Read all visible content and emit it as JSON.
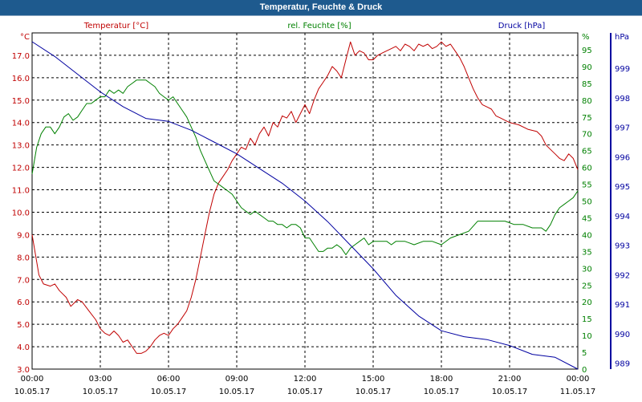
{
  "window": {
    "title": "Temperatur, Feuchte & Druck"
  },
  "chart_data": {
    "type": "line",
    "title": "Temperatur, Feuchte & Druck",
    "grid": true,
    "x_ticks": [
      {
        "time": "00:00",
        "date": "10.05.17"
      },
      {
        "time": "03:00",
        "date": "10.05.17"
      },
      {
        "time": "06:00",
        "date": "10.05.17"
      },
      {
        "time": "09:00",
        "date": "10.05.17"
      },
      {
        "time": "12:00",
        "date": "10.05.17"
      },
      {
        "time": "15:00",
        "date": "10.05.17"
      },
      {
        "time": "18:00",
        "date": "10.05.17"
      },
      {
        "time": "21:00",
        "date": "10.05.17"
      },
      {
        "time": "00:00",
        "date": "11.05.17"
      }
    ],
    "x_range_hours": [
      0,
      24
    ],
    "axes": {
      "temperature": {
        "label": "Temperatur [°C]",
        "unit": "°C",
        "color": "#c00000",
        "side": "left",
        "range": [
          3.0,
          18.0
        ],
        "ticks": [
          "3.0",
          "4.0",
          "5.0",
          "6.0",
          "7.0",
          "8.0",
          "9.0",
          "10.0",
          "11.0",
          "12.0",
          "13.0",
          "14.0",
          "15.0",
          "16.0",
          "17.0"
        ]
      },
      "humidity": {
        "label": "rel. Feuchte [%]",
        "unit": "%",
        "color": "#008000",
        "side": "right-inner",
        "range": [
          0,
          100
        ],
        "ticks": [
          "0",
          "5",
          "10",
          "15",
          "20",
          "25",
          "30",
          "35",
          "40",
          "45",
          "50",
          "55",
          "60",
          "65",
          "70",
          "75",
          "80",
          "85",
          "90",
          "95"
        ]
      },
      "pressure": {
        "label": "Druck [hPa]",
        "unit": "hPa",
        "color": "#0000a0",
        "side": "right-outer",
        "range": [
          988.8,
          1000.2
        ],
        "ticks": [
          "989",
          "990",
          "991",
          "992",
          "993",
          "994",
          "995",
          "996",
          "997",
          "998",
          "999"
        ]
      }
    },
    "series": [
      {
        "name": "Temperatur [°C]",
        "axis": "temperature",
        "color": "#c00000",
        "points": [
          [
            0,
            9.0
          ],
          [
            0.3,
            7.2
          ],
          [
            0.5,
            6.8
          ],
          [
            0.8,
            6.7
          ],
          [
            1.0,
            6.8
          ],
          [
            1.2,
            6.5
          ],
          [
            1.5,
            6.2
          ],
          [
            1.7,
            5.8
          ],
          [
            2.0,
            6.1
          ],
          [
            2.2,
            6.0
          ],
          [
            2.5,
            5.6
          ],
          [
            2.8,
            5.2
          ],
          [
            3.0,
            4.8
          ],
          [
            3.2,
            4.6
          ],
          [
            3.4,
            4.5
          ],
          [
            3.6,
            4.7
          ],
          [
            3.8,
            4.5
          ],
          [
            4.0,
            4.2
          ],
          [
            4.2,
            4.3
          ],
          [
            4.4,
            4.0
          ],
          [
            4.6,
            3.7
          ],
          [
            4.8,
            3.7
          ],
          [
            5.0,
            3.8
          ],
          [
            5.2,
            4.0
          ],
          [
            5.4,
            4.3
          ],
          [
            5.6,
            4.5
          ],
          [
            5.8,
            4.6
          ],
          [
            6.0,
            4.5
          ],
          [
            6.2,
            4.8
          ],
          [
            6.4,
            5.0
          ],
          [
            6.6,
            5.3
          ],
          [
            6.8,
            5.6
          ],
          [
            7.0,
            6.2
          ],
          [
            7.2,
            7.0
          ],
          [
            7.4,
            8.0
          ],
          [
            7.6,
            9.0
          ],
          [
            7.8,
            10.0
          ],
          [
            8.0,
            10.8
          ],
          [
            8.2,
            11.3
          ],
          [
            8.4,
            11.6
          ],
          [
            8.6,
            11.9
          ],
          [
            8.8,
            12.3
          ],
          [
            9.0,
            12.6
          ],
          [
            9.2,
            12.9
          ],
          [
            9.4,
            12.8
          ],
          [
            9.6,
            13.3
          ],
          [
            9.8,
            13.0
          ],
          [
            10.0,
            13.5
          ],
          [
            10.2,
            13.8
          ],
          [
            10.4,
            13.4
          ],
          [
            10.6,
            14.0
          ],
          [
            10.8,
            13.8
          ],
          [
            11.0,
            14.3
          ],
          [
            11.2,
            14.2
          ],
          [
            11.4,
            14.5
          ],
          [
            11.6,
            14.0
          ],
          [
            11.8,
            14.4
          ],
          [
            12.0,
            14.8
          ],
          [
            12.2,
            14.4
          ],
          [
            12.4,
            15.0
          ],
          [
            12.6,
            15.5
          ],
          [
            12.8,
            15.8
          ],
          [
            13.0,
            16.1
          ],
          [
            13.2,
            16.5
          ],
          [
            13.4,
            16.3
          ],
          [
            13.6,
            16.0
          ],
          [
            13.8,
            16.8
          ],
          [
            14.0,
            17.6
          ],
          [
            14.2,
            17.0
          ],
          [
            14.4,
            17.2
          ],
          [
            14.6,
            17.1
          ],
          [
            14.8,
            16.8
          ],
          [
            15.0,
            16.8
          ],
          [
            15.2,
            17.0
          ],
          [
            15.4,
            17.1
          ],
          [
            15.6,
            17.2
          ],
          [
            15.8,
            17.3
          ],
          [
            16.0,
            17.4
          ],
          [
            16.2,
            17.2
          ],
          [
            16.4,
            17.5
          ],
          [
            16.6,
            17.4
          ],
          [
            16.8,
            17.2
          ],
          [
            17.0,
            17.5
          ],
          [
            17.2,
            17.4
          ],
          [
            17.4,
            17.5
          ],
          [
            17.6,
            17.3
          ],
          [
            17.8,
            17.4
          ],
          [
            18.0,
            17.6
          ],
          [
            18.2,
            17.4
          ],
          [
            18.4,
            17.5
          ],
          [
            18.6,
            17.2
          ],
          [
            18.8,
            16.9
          ],
          [
            19.0,
            16.5
          ],
          [
            19.2,
            16.0
          ],
          [
            19.4,
            15.5
          ],
          [
            19.6,
            15.1
          ],
          [
            19.8,
            14.8
          ],
          [
            20.0,
            14.7
          ],
          [
            20.2,
            14.6
          ],
          [
            20.4,
            14.3
          ],
          [
            20.6,
            14.2
          ],
          [
            20.8,
            14.1
          ],
          [
            21.0,
            14.0
          ],
          [
            21.4,
            13.9
          ],
          [
            21.8,
            13.7
          ],
          [
            22.2,
            13.6
          ],
          [
            22.4,
            13.4
          ],
          [
            22.6,
            13.0
          ],
          [
            22.8,
            12.8
          ],
          [
            23.0,
            12.6
          ],
          [
            23.2,
            12.4
          ],
          [
            23.4,
            12.3
          ],
          [
            23.6,
            12.6
          ],
          [
            23.8,
            12.4
          ],
          [
            24.0,
            11.9
          ]
        ]
      },
      {
        "name": "rel. Feuchte [%]",
        "axis": "humidity",
        "color": "#008000",
        "points": [
          [
            0,
            58
          ],
          [
            0.2,
            66
          ],
          [
            0.4,
            70
          ],
          [
            0.6,
            72
          ],
          [
            0.8,
            72
          ],
          [
            1.0,
            70
          ],
          [
            1.2,
            72
          ],
          [
            1.4,
            75
          ],
          [
            1.6,
            76
          ],
          [
            1.8,
            74
          ],
          [
            2.0,
            75
          ],
          [
            2.2,
            77
          ],
          [
            2.4,
            79
          ],
          [
            2.6,
            79
          ],
          [
            2.8,
            80
          ],
          [
            3.0,
            81
          ],
          [
            3.2,
            81
          ],
          [
            3.4,
            83
          ],
          [
            3.6,
            82
          ],
          [
            3.8,
            83
          ],
          [
            4.0,
            82
          ],
          [
            4.2,
            84
          ],
          [
            4.4,
            85
          ],
          [
            4.6,
            86
          ],
          [
            4.8,
            86
          ],
          [
            5.0,
            86
          ],
          [
            5.2,
            85
          ],
          [
            5.4,
            84
          ],
          [
            5.6,
            82
          ],
          [
            5.8,
            81
          ],
          [
            6.0,
            80
          ],
          [
            6.2,
            81
          ],
          [
            6.4,
            79
          ],
          [
            6.6,
            77
          ],
          [
            6.8,
            75
          ],
          [
            7.0,
            72
          ],
          [
            7.2,
            69
          ],
          [
            7.4,
            65
          ],
          [
            7.6,
            62
          ],
          [
            7.8,
            59
          ],
          [
            8.0,
            56
          ],
          [
            8.2,
            55
          ],
          [
            8.4,
            54
          ],
          [
            8.6,
            53
          ],
          [
            8.8,
            52
          ],
          [
            9.0,
            50
          ],
          [
            9.2,
            48
          ],
          [
            9.4,
            47
          ],
          [
            9.6,
            46
          ],
          [
            9.8,
            47
          ],
          [
            10.0,
            46
          ],
          [
            10.2,
            45
          ],
          [
            10.4,
            44
          ],
          [
            10.6,
            44
          ],
          [
            10.8,
            43
          ],
          [
            11.0,
            43
          ],
          [
            11.2,
            42
          ],
          [
            11.4,
            43
          ],
          [
            11.6,
            43
          ],
          [
            11.8,
            42
          ],
          [
            12.0,
            39
          ],
          [
            12.2,
            39
          ],
          [
            12.4,
            37
          ],
          [
            12.6,
            35
          ],
          [
            12.8,
            35
          ],
          [
            13.0,
            36
          ],
          [
            13.2,
            36
          ],
          [
            13.4,
            37
          ],
          [
            13.6,
            36
          ],
          [
            13.8,
            34
          ],
          [
            14.0,
            36
          ],
          [
            14.2,
            37
          ],
          [
            14.4,
            38
          ],
          [
            14.6,
            39
          ],
          [
            14.8,
            37
          ],
          [
            15.0,
            38
          ],
          [
            15.2,
            38
          ],
          [
            15.4,
            38
          ],
          [
            15.6,
            38
          ],
          [
            15.8,
            37
          ],
          [
            16.0,
            38
          ],
          [
            16.4,
            38
          ],
          [
            16.8,
            37
          ],
          [
            17.2,
            38
          ],
          [
            17.6,
            38
          ],
          [
            18.0,
            37
          ],
          [
            18.4,
            39
          ],
          [
            18.8,
            40
          ],
          [
            19.2,
            41
          ],
          [
            19.6,
            44
          ],
          [
            20.0,
            44
          ],
          [
            20.4,
            44
          ],
          [
            20.8,
            44
          ],
          [
            21.2,
            43
          ],
          [
            21.6,
            43
          ],
          [
            22.0,
            42
          ],
          [
            22.4,
            42
          ],
          [
            22.6,
            41
          ],
          [
            22.8,
            43
          ],
          [
            23.0,
            46
          ],
          [
            23.2,
            48
          ],
          [
            23.4,
            49
          ],
          [
            23.6,
            50
          ],
          [
            23.8,
            51
          ],
          [
            24.0,
            53
          ]
        ]
      },
      {
        "name": "Druck [hPa]",
        "axis": "pressure",
        "color": "#0000a0",
        "points": [
          [
            0,
            999.9
          ],
          [
            1,
            999.4
          ],
          [
            2,
            998.8
          ],
          [
            3,
            998.2
          ],
          [
            4,
            997.7
          ],
          [
            5,
            997.3
          ],
          [
            6,
            997.2
          ],
          [
            7,
            996.9
          ],
          [
            8,
            996.5
          ],
          [
            9,
            996.1
          ],
          [
            10,
            995.6
          ],
          [
            11,
            995.1
          ],
          [
            12,
            994.5
          ],
          [
            13,
            993.8
          ],
          [
            14,
            993.0
          ],
          [
            15,
            992.2
          ],
          [
            16,
            991.3
          ],
          [
            17,
            990.6
          ],
          [
            18,
            990.1
          ],
          [
            19,
            989.9
          ],
          [
            20,
            989.8
          ],
          [
            21,
            989.6
          ],
          [
            22,
            989.3
          ],
          [
            23,
            989.2
          ],
          [
            24,
            988.8
          ]
        ]
      }
    ]
  }
}
